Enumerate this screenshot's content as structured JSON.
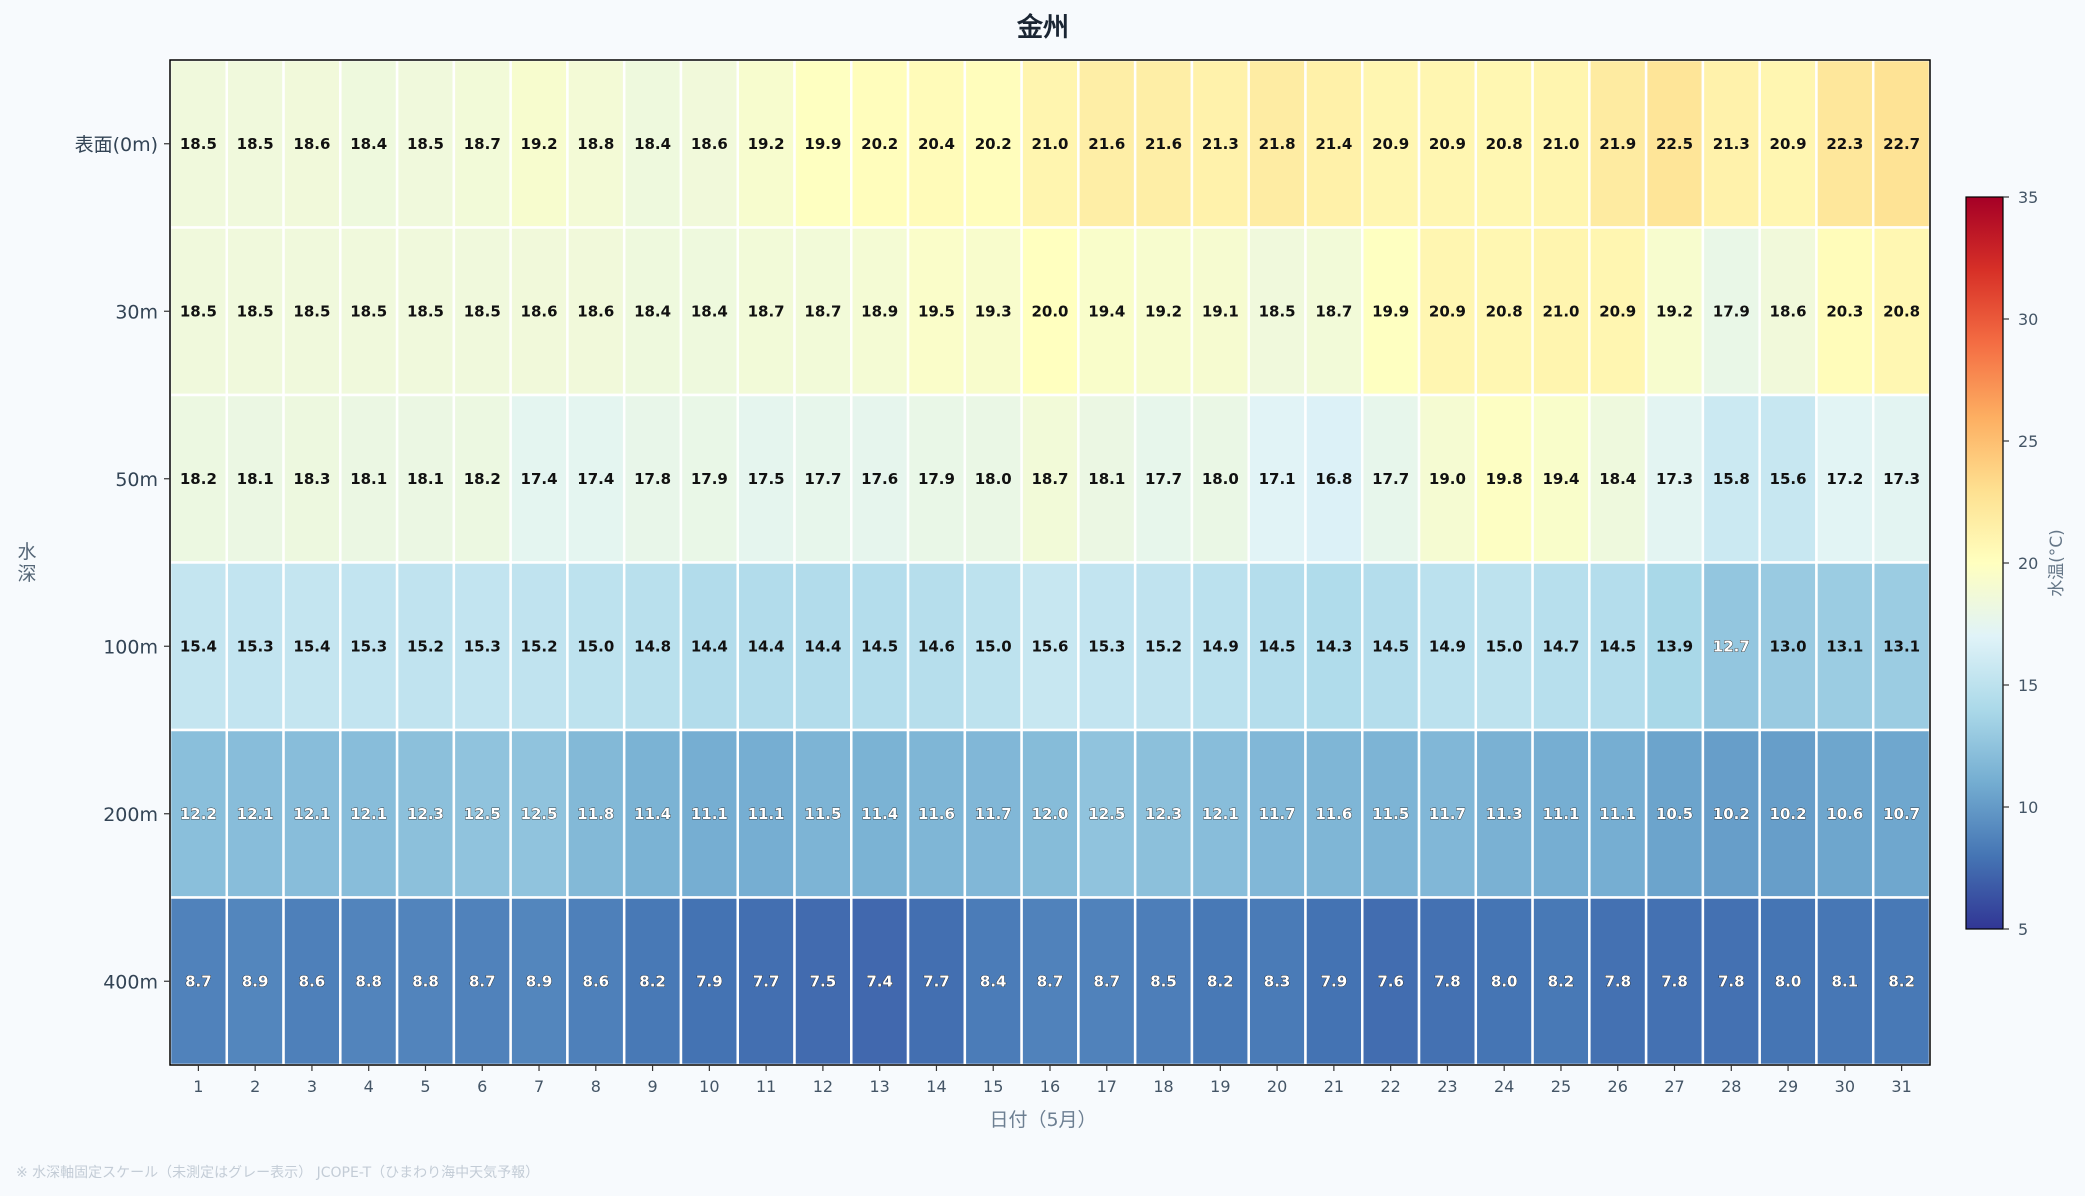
{
  "chart_data": {
    "type": "heatmap",
    "title": "金州",
    "xlabel": "日付（5月）",
    "ylabel": "水深",
    "x": [
      1,
      2,
      3,
      4,
      5,
      6,
      7,
      8,
      9,
      10,
      11,
      12,
      13,
      14,
      15,
      16,
      17,
      18,
      19,
      20,
      21,
      22,
      23,
      24,
      25,
      26,
      27,
      28,
      29,
      30,
      31
    ],
    "y": [
      "表面(0m)",
      "30m",
      "50m",
      "100m",
      "200m",
      "400m"
    ],
    "values": [
      [
        18.5,
        18.5,
        18.6,
        18.4,
        18.5,
        18.7,
        19.2,
        18.8,
        18.4,
        18.6,
        19.2,
        19.9,
        20.2,
        20.4,
        20.2,
        21.0,
        21.6,
        21.6,
        21.3,
        21.8,
        21.4,
        20.9,
        20.9,
        20.8,
        21.0,
        21.9,
        22.5,
        21.3,
        20.9,
        22.3,
        22.7
      ],
      [
        18.5,
        18.5,
        18.5,
        18.5,
        18.5,
        18.5,
        18.6,
        18.6,
        18.4,
        18.4,
        18.7,
        18.7,
        18.9,
        19.5,
        19.3,
        20.0,
        19.4,
        19.2,
        19.1,
        18.5,
        18.7,
        19.9,
        20.9,
        20.8,
        21.0,
        20.9,
        19.2,
        17.9,
        18.6,
        20.3,
        20.8
      ],
      [
        18.2,
        18.1,
        18.3,
        18.1,
        18.1,
        18.2,
        17.4,
        17.4,
        17.8,
        17.9,
        17.5,
        17.7,
        17.6,
        17.9,
        18.0,
        18.7,
        18.1,
        17.7,
        18.0,
        17.1,
        16.8,
        17.7,
        19.0,
        19.8,
        19.4,
        18.4,
        17.3,
        15.8,
        15.6,
        17.2,
        17.3
      ],
      [
        15.4,
        15.3,
        15.4,
        15.3,
        15.2,
        15.3,
        15.2,
        15.0,
        14.8,
        14.4,
        14.4,
        14.4,
        14.5,
        14.6,
        15.0,
        15.6,
        15.3,
        15.2,
        14.9,
        14.5,
        14.3,
        14.5,
        14.9,
        15.0,
        14.7,
        14.5,
        13.9,
        12.7,
        13.0,
        13.1,
        13.1
      ],
      [
        12.2,
        12.1,
        12.1,
        12.1,
        12.3,
        12.5,
        12.5,
        11.8,
        11.4,
        11.1,
        11.1,
        11.5,
        11.4,
        11.6,
        11.7,
        12.0,
        12.5,
        12.3,
        12.1,
        11.7,
        11.6,
        11.5,
        11.7,
        11.3,
        11.1,
        11.1,
        10.5,
        10.2,
        10.2,
        10.6,
        10.7
      ],
      [
        8.7,
        8.9,
        8.6,
        8.8,
        8.8,
        8.7,
        8.9,
        8.6,
        8.2,
        7.9,
        7.7,
        7.5,
        7.4,
        7.7,
        8.4,
        8.7,
        8.7,
        8.5,
        8.2,
        8.3,
        7.9,
        7.6,
        7.8,
        8.0,
        8.2,
        7.8,
        7.8,
        7.8,
        8.0,
        8.1,
        8.2
      ]
    ],
    "colorbar": {
      "label": "水温(°C)",
      "range": [
        5,
        35
      ],
      "ticks": [
        5,
        10,
        15,
        20,
        25,
        30,
        35
      ],
      "colormap": "RdYlBu_r",
      "stops": [
        "#313695",
        "#4575b4",
        "#74add1",
        "#abd9e9",
        "#e0f3f8",
        "#ffffbf",
        "#fee090",
        "#fdae61",
        "#f46d43",
        "#d73027",
        "#a50026"
      ]
    },
    "grid": false
  },
  "footnote": "※ 水深軸固定スケール（未測定はグレー表示） JCOPE-T（ひまわり海中天気予報）"
}
